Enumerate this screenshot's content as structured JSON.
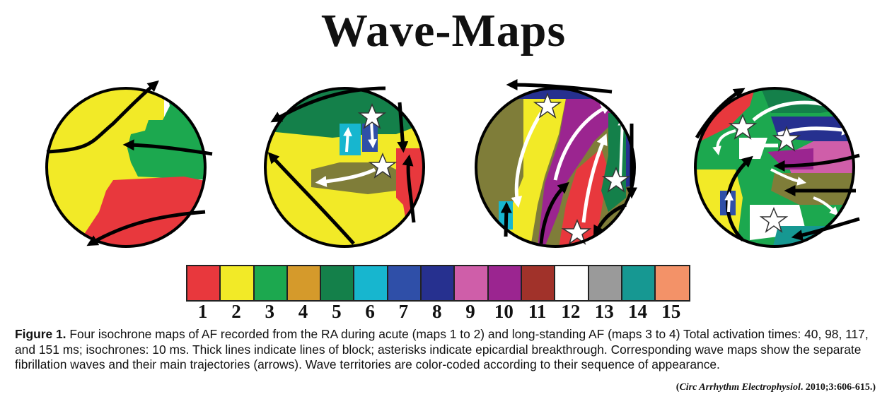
{
  "title": "Wave-Maps",
  "legend": {
    "colors": [
      "#e8383d",
      "#f2ea27",
      "#1ca84f",
      "#d59a2b",
      "#14804a",
      "#17b6cf",
      "#2f4fa8",
      "#26308f",
      "#cf5ea9",
      "#9b2590",
      "#a1322a",
      "#ffffff",
      "#9a9a9a",
      "#169892",
      "#f39268"
    ],
    "labels": [
      "1",
      "2",
      "3",
      "4",
      "5",
      "6",
      "7",
      "8",
      "9",
      "10",
      "11",
      "12",
      "13",
      "14",
      "15"
    ]
  },
  "caption": {
    "label": "Figure 1.",
    "text": " Four isochrone maps of AF recorded from the RA during acute (maps 1 to 2) and long-standing AF (maps 3 to 4) Total activation times: 40, 98, 117, and 151 ms; isochrones: 10 ms. Thick lines indicate lines of block; asterisks indicate epicardial breakthrough. Corresponding wave maps show the separate fibrillation waves and their main trajectories (arrows). Wave territories are color-coded according to their sequence of appearance."
  },
  "citation": {
    "journal": "Circ Arrhythm Electrophysiol",
    "rest": ". 2010;3:606-615."
  }
}
